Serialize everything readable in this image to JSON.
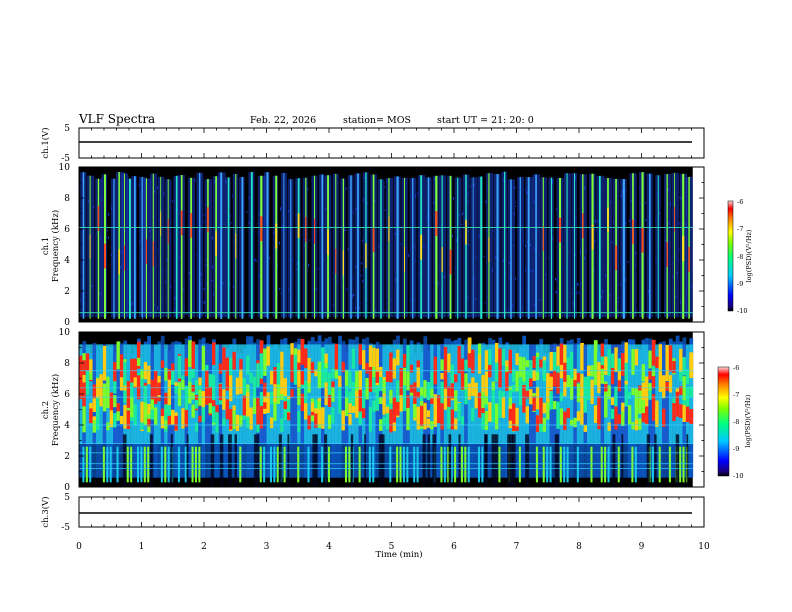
{
  "header": {
    "title": "VLF Spectra",
    "date": "Feb. 22, 2026",
    "station": "station= MOS",
    "start": "start  UT  =   21: 20: 0"
  },
  "chart_data": [
    {
      "type": "line",
      "panel": "ch1-voltage",
      "ylabel": "ch.1(V)",
      "ylim": [
        -5,
        5
      ],
      "y_ticks": [
        "5",
        "-5"
      ],
      "x": [
        0,
        9.82
      ],
      "values": [
        0.1,
        0.1
      ],
      "xlim": [
        0,
        10
      ]
    },
    {
      "type": "heatmap",
      "panel": "ch1-spectrogram",
      "ylabel": "ch.1",
      "ylabel2": "Frequency (kHz)",
      "ylim": [
        0,
        10
      ],
      "y_ticks": [
        "0",
        "2",
        "4",
        "6",
        "8",
        "10"
      ],
      "xlim": [
        0,
        10
      ],
      "data_x_end": 9.82,
      "colorbar": {
        "label": "log(PSD)(V²/Hz)",
        "range": [
          -10,
          -6
        ],
        "ticks": [
          "-6",
          "-7",
          "-8",
          "-9",
          "-10"
        ]
      },
      "persistent_lines_khz": [
        0.6,
        6.1
      ],
      "burst_times_min": [
        0.06,
        0.17,
        0.3,
        0.4,
        0.55,
        0.63,
        0.72,
        0.8,
        0.88,
        1.0,
        1.07,
        1.18,
        1.3,
        1.42,
        1.55,
        1.63,
        1.78,
        1.92,
        2.05,
        2.18,
        2.26,
        2.38,
        2.5,
        2.6,
        2.75,
        2.9,
        3.0,
        3.14,
        3.27,
        3.38,
        3.5,
        3.62,
        3.76,
        3.88,
        3.97,
        4.1,
        4.22,
        4.34,
        4.45,
        4.58,
        4.7,
        4.82,
        4.95,
        5.08,
        5.2,
        5.33,
        5.46,
        5.58,
        5.7,
        5.8,
        5.93,
        6.05,
        6.18,
        6.3,
        6.42,
        6.55,
        6.68,
        6.8,
        6.9,
        7.05,
        7.18,
        7.3,
        7.42,
        7.55,
        7.68,
        7.8,
        7.92,
        8.05,
        8.2,
        8.32,
        8.45,
        8.58,
        8.7,
        8.85,
        9.0,
        9.12,
        9.26,
        9.4,
        9.52,
        9.65,
        9.75
      ]
    },
    {
      "type": "heatmap",
      "panel": "ch2-spectrogram",
      "ylabel": "ch.2",
      "ylabel2": "Frequency (kHz)",
      "ylim": [
        0,
        10
      ],
      "y_ticks": [
        "0",
        "2",
        "4",
        "6",
        "8",
        "10"
      ],
      "xlim": [
        0,
        10
      ],
      "data_x_end": 9.82,
      "colorbar": {
        "label": "log(PSD)(V²/Hz)",
        "range": [
          -10,
          -6
        ],
        "ticks": [
          "-6",
          "-7",
          "-8",
          "-9",
          "-10"
        ]
      },
      "persistent_lines_khz": [
        1.2,
        1.5,
        2.2,
        2.8,
        4.0,
        5.8,
        6.4,
        7.5
      ],
      "strong_band_khz": [
        3.5,
        8.5
      ]
    },
    {
      "type": "line",
      "panel": "ch3-voltage",
      "ylabel": "ch.3(V)",
      "ylim": [
        -5,
        5
      ],
      "y_ticks": [
        "5",
        "-5"
      ],
      "x": [
        0,
        9.82
      ],
      "values": [
        -1.5,
        -1.5
      ],
      "xlim": [
        0,
        10
      ],
      "xlabel": "Time (min)",
      "x_ticks": [
        "0",
        "1",
        "2",
        "3",
        "4",
        "5",
        "6",
        "7",
        "8",
        "9",
        "10"
      ]
    }
  ]
}
